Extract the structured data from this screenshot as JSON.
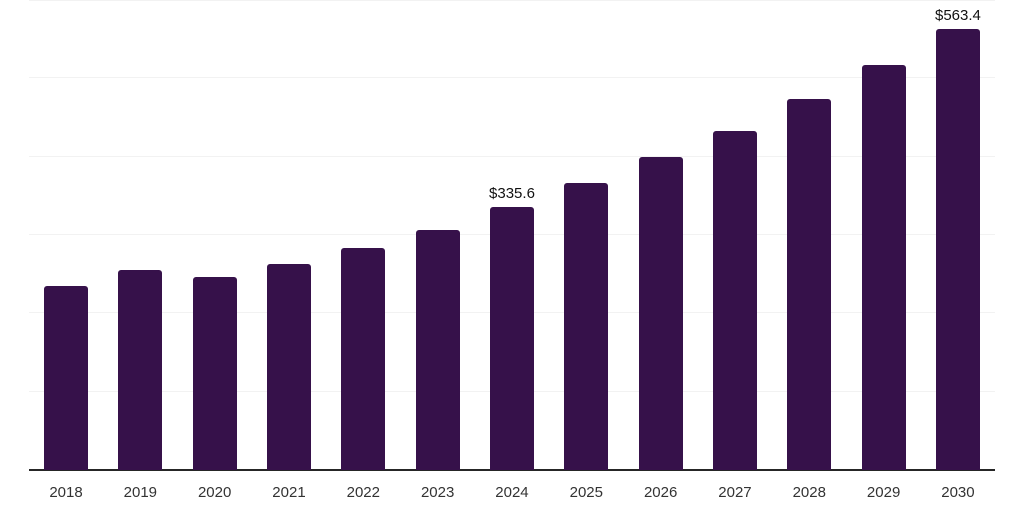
{
  "chart_data": {
    "type": "bar",
    "title": "",
    "xlabel": "",
    "ylabel": "",
    "categories": [
      "2018",
      "2019",
      "2020",
      "2021",
      "2022",
      "2023",
      "2024",
      "2025",
      "2026",
      "2027",
      "2028",
      "2029",
      "2030"
    ],
    "values": [
      235,
      255,
      246,
      263,
      284,
      307,
      335.6,
      366,
      399,
      433,
      474,
      517,
      563.4
    ],
    "data_labels": [
      "",
      "",
      "",
      "",
      "",
      "",
      "$335.6",
      "",
      "",
      "",
      "",
      "",
      "$563.4"
    ],
    "ylim": [
      0,
      600
    ],
    "grid_step": 100,
    "grid": "horizontal",
    "legend": "none",
    "colors": {
      "bar": "#36114a",
      "gridline": "#f2f2f2",
      "axis_line": "#262626",
      "tick_label": "#333333",
      "data_label": "#111111",
      "background": "#ffffff"
    }
  }
}
